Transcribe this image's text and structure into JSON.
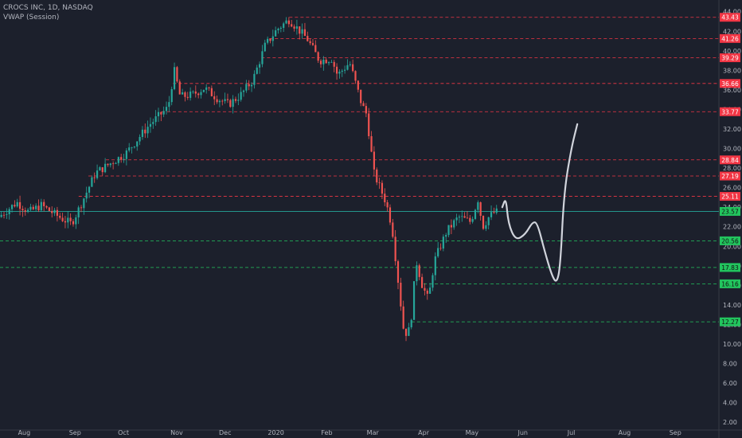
{
  "header": {
    "title": "CROCS INC, 1D, NASDAQ",
    "indicator": "VWAP (Session)"
  },
  "chart_data": {
    "type": "candlestick",
    "symbol": "CROCS INC",
    "interval": "1D",
    "exchange": "NASDAQ",
    "ylim": [
      1.2,
      45.2
    ],
    "xlim": [
      0,
      59.4
    ],
    "y_ticks": [
      44,
      42,
      40,
      38,
      36,
      34,
      32,
      30,
      28,
      26,
      24,
      22,
      20,
      18,
      16,
      14,
      12,
      10,
      8,
      6,
      4,
      2
    ],
    "x_ticks": [
      {
        "label": "Aug",
        "x": 2
      },
      {
        "label": "Sep",
        "x": 6.2
      },
      {
        "label": "Oct",
        "x": 10.2
      },
      {
        "label": "Nov",
        "x": 14.6
      },
      {
        "label": "Dec",
        "x": 18.6
      },
      {
        "label": "2020",
        "x": 22.8
      },
      {
        "label": "Feb",
        "x": 27
      },
      {
        "label": "Mar",
        "x": 30.8
      },
      {
        "label": "Apr",
        "x": 35
      },
      {
        "label": "May",
        "x": 39
      },
      {
        "label": "Jun",
        "x": 43.2
      },
      {
        "label": "Jul",
        "x": 47.2
      },
      {
        "label": "Aug",
        "x": 51.6
      },
      {
        "label": "Sep",
        "x": 55.8
      }
    ],
    "resistance_levels": [
      43.43,
      41.26,
      39.29,
      36.66,
      33.77,
      28.84,
      27.19,
      25.11
    ],
    "support_levels": [
      20.56,
      17.83,
      16.16,
      12.27
    ],
    "current_price": 23.57,
    "price_path": [
      [
        0,
        23.0
      ],
      [
        1.5,
        24.5
      ],
      [
        2.5,
        23.5
      ],
      [
        3.5,
        24.2
      ],
      [
        5,
        23.0
      ],
      [
        6,
        22.3
      ],
      [
        6.5,
        23.5
      ],
      [
        8,
        27.5
      ],
      [
        9,
        28.3
      ],
      [
        10.5,
        29.5
      ],
      [
        11.5,
        31
      ],
      [
        12.5,
        32.5
      ],
      [
        14,
        34.2
      ],
      [
        14.5,
        38
      ],
      [
        15,
        35.3
      ],
      [
        16,
        35.5
      ],
      [
        17,
        36.2
      ],
      [
        18,
        35.2
      ],
      [
        19,
        34.5
      ],
      [
        20,
        35.5
      ],
      [
        21,
        37
      ],
      [
        22,
        40.5
      ],
      [
        23,
        42.2
      ],
      [
        24,
        43.2
      ],
      [
        25.5,
        41.2
      ],
      [
        26.5,
        39.0
      ],
      [
        27.5,
        39.2
      ],
      [
        28,
        37.5
      ],
      [
        29,
        38.8
      ],
      [
        30,
        34.5
      ],
      [
        30.4,
        33.5
      ],
      [
        31,
        27.5
      ],
      [
        32,
        24.5
      ],
      [
        32.5,
        22
      ],
      [
        33,
        16.5
      ],
      [
        33.5,
        11.0
      ],
      [
        34,
        11.5
      ],
      [
        34.5,
        18.5
      ],
      [
        35,
        16.0
      ],
      [
        35.5,
        14.5
      ],
      [
        36,
        18.5
      ],
      [
        37,
        21.5
      ],
      [
        38,
        23.0
      ],
      [
        39,
        22.5
      ],
      [
        39.6,
        24.8
      ],
      [
        40,
        22.0
      ],
      [
        40.5,
        23.0
      ],
      [
        41,
        23.5
      ]
    ],
    "projection_path": [
      [
        41.5,
        24.0
      ],
      [
        41.8,
        25.0
      ],
      [
        42.0,
        22.3
      ],
      [
        42.6,
        20.6
      ],
      [
        43.4,
        21.2
      ],
      [
        44.0,
        22.5
      ],
      [
        44.4,
        22.4
      ],
      [
        45.0,
        19.5
      ],
      [
        45.6,
        17.0
      ],
      [
        46.0,
        16.2
      ],
      [
        46.3,
        18.0
      ],
      [
        46.6,
        25.5
      ],
      [
        47.2,
        30.0
      ],
      [
        47.7,
        32.5
      ]
    ],
    "colors": {
      "background": "#1c202c",
      "up": "#26a69a",
      "down": "#ef5350",
      "resistance": "#f23645",
      "support": "#22c55e",
      "projection": "#d1d4dc",
      "vwap": "#26a69a"
    }
  }
}
